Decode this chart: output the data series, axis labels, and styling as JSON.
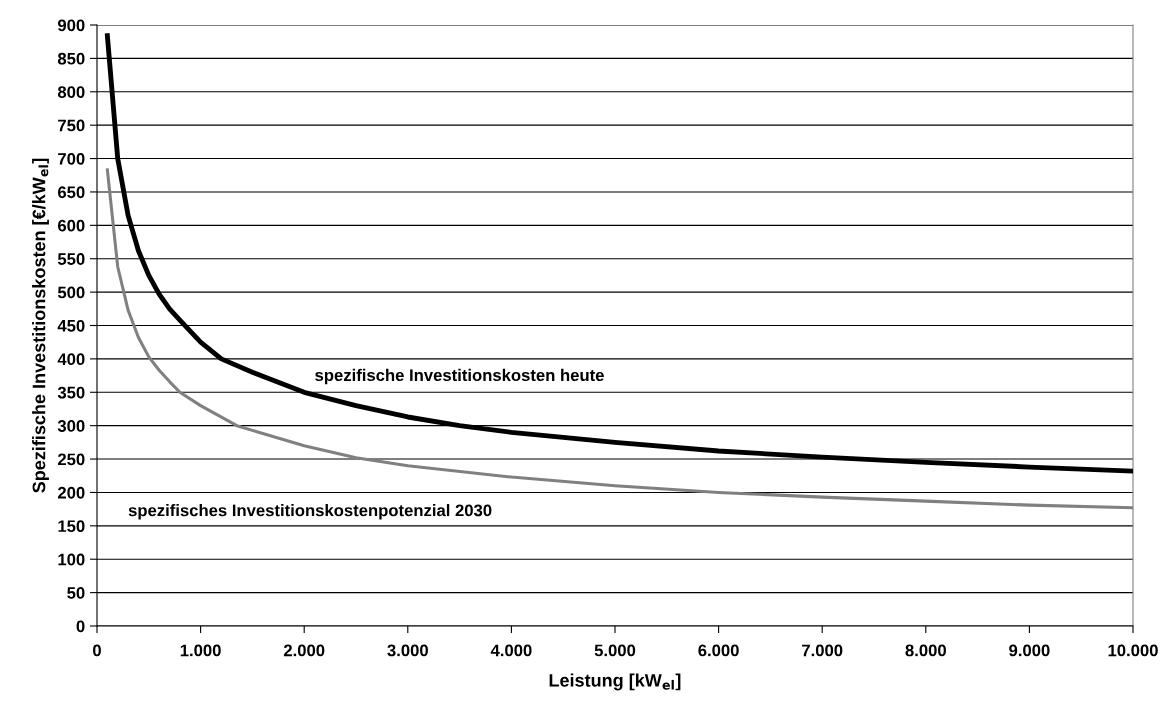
{
  "chart_data": {
    "type": "line",
    "xlabel": "Leistung [kW$_{el}$]",
    "ylabel": "Spezifische Investitionskosten [€/kW$_{el}$]",
    "xlim": [
      0,
      10000
    ],
    "ylim": [
      0,
      900
    ],
    "xticks": [
      0,
      {
        "value": 1000,
        "label": "1.000"
      },
      {
        "value": 2000,
        "label": "2.000"
      },
      {
        "value": 3000,
        "label": "3.000"
      },
      {
        "value": 4000,
        "label": "4.000"
      },
      {
        "value": 5000,
        "label": "5.000"
      },
      {
        "value": 6000,
        "label": "6.000"
      },
      {
        "value": 7000,
        "label": "7.000"
      },
      {
        "value": 8000,
        "label": "8.000"
      },
      {
        "value": 9000,
        "label": "9.000"
      },
      {
        "value": 10000,
        "label": "10.000"
      }
    ],
    "yticks": [
      0,
      50,
      100,
      150,
      200,
      250,
      300,
      350,
      400,
      450,
      500,
      550,
      600,
      650,
      700,
      750,
      800,
      850,
      900
    ],
    "grid": "y",
    "legend": false,
    "marker": "none",
    "line_style": "solid",
    "series": [
      {
        "color": "#000000",
        "x": [
          100,
          200,
          300,
          400,
          500,
          600,
          700,
          800,
          1000,
          1200,
          1500,
          2000,
          2500,
          3000,
          3500,
          4000,
          5000,
          6000,
          7000,
          8000,
          9000,
          10000
        ],
        "values": [
          884,
          700,
          615,
          562,
          525,
          497,
          475,
          458,
          425,
          400,
          380,
          350,
          330,
          313,
          300,
          290,
          275,
          262,
          253,
          245,
          238,
          232
        ]
      },
      {
        "color": "#808080",
        "x": [
          100,
          200,
          300,
          400,
          500,
          600,
          700,
          800,
          1000,
          1350,
          1500,
          2000,
          2500,
          3000,
          4000,
          5000,
          6000,
          7000,
          8000,
          9000,
          10000
        ],
        "values": [
          683,
          538,
          473,
          432,
          403,
          383,
          366,
          350,
          330,
          300,
          293,
          270,
          252,
          240,
          223,
          210,
          200,
          193,
          187,
          181,
          177
        ]
      }
    ],
    "annotations": [
      "spezifische Investitionskosten heute",
      "spezifisches Investitionskostenpotenzial 2030"
    ]
  }
}
